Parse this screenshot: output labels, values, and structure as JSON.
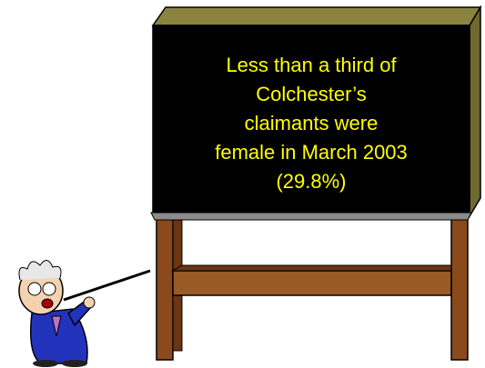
{
  "board": {
    "lines": [
      "Less than a third of",
      "Colchester’s",
      "claimants were",
      "female in March 2003",
      "(29.8%)"
    ]
  }
}
